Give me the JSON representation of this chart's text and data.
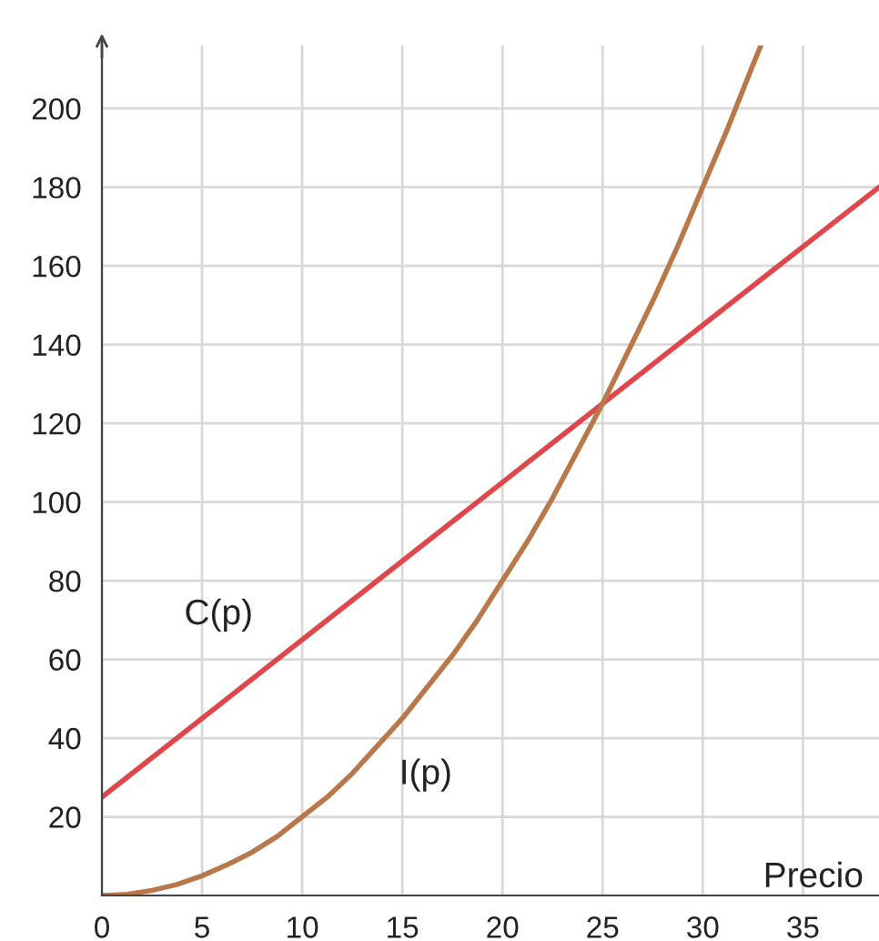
{
  "chart_data": {
    "type": "line",
    "xlabel": "Precio",
    "series": [
      {
        "name": "C(p)",
        "color": "#e0474c",
        "x": [
          0,
          25,
          38.8
        ],
        "values": [
          25,
          125,
          180
        ]
      },
      {
        "name": "I(p)",
        "color": "#b9774a",
        "x": [
          0,
          1.25,
          2.5,
          3.75,
          5,
          6.25,
          7.5,
          8.75,
          10,
          11.25,
          12.5,
          13.75,
          15,
          16.25,
          17.5,
          18.75,
          20,
          21.25,
          22.5,
          23.75,
          25,
          26.25,
          27.5,
          28.75,
          30,
          31.25,
          32.5,
          32.9
        ],
        "values": [
          0,
          0.3,
          1.3,
          2.8,
          5,
          7.8,
          11,
          15,
          20,
          25,
          31,
          38,
          45,
          53,
          61,
          70,
          80,
          90,
          101,
          113,
          125,
          138,
          151,
          165,
          180,
          195,
          211,
          216
        ]
      }
    ],
    "xlim": [
      0,
      38.8
    ],
    "ylim": [
      0,
      216
    ],
    "xticks": [
      0,
      5,
      10,
      15,
      20,
      25,
      30,
      35
    ],
    "yticks": [
      {
        "value": 0,
        "label": null
      },
      20,
      40,
      60,
      80,
      100,
      120,
      140,
      160,
      180,
      200
    ],
    "grid": true,
    "legend": false,
    "marker": "none",
    "line_style": "solid"
  }
}
